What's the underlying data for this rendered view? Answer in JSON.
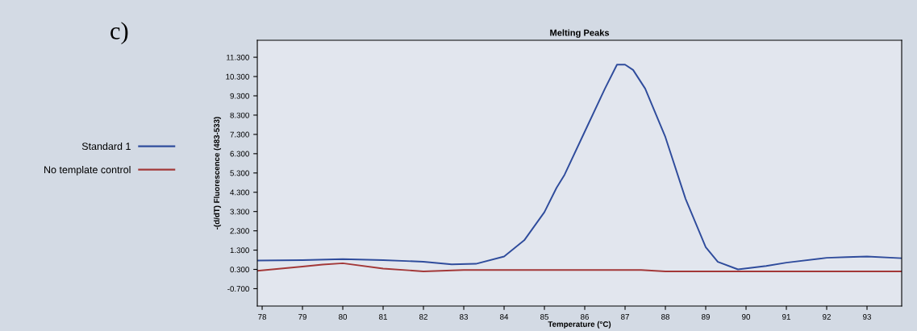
{
  "chart_data": {
    "type": "line",
    "title": "Melting Peaks",
    "xlabel": "Temperature (°C)",
    "ylabel": "-(d/dT) Fluorescence (483-533)",
    "annotations": [
      "c)"
    ],
    "xlim": [
      77.88,
      93.86
    ],
    "ylim": [
      -1.6,
      12.18
    ],
    "xticks": [
      78,
      79,
      80,
      81,
      82,
      83,
      84,
      85,
      86,
      87,
      88,
      89,
      90,
      91,
      92,
      93
    ],
    "yticks": [
      {
        "value": -0.7,
        "label": "-0.700"
      },
      {
        "value": 0.3,
        "label": "0.300"
      },
      {
        "value": 1.3,
        "label": "1.300"
      },
      {
        "value": 2.3,
        "label": "2.300"
      },
      {
        "value": 3.3,
        "label": "3.300"
      },
      {
        "value": 4.3,
        "label": "4.300"
      },
      {
        "value": 5.3,
        "label": "5.300"
      },
      {
        "value": 6.3,
        "label": "6.300"
      },
      {
        "value": 7.3,
        "label": "7.300"
      },
      {
        "value": 8.3,
        "label": "8.300"
      },
      {
        "value": 9.3,
        "label": "9.300"
      },
      {
        "value": 10.3,
        "label": "10.300"
      },
      {
        "value": 11.3,
        "label": "11.300"
      }
    ],
    "grid": false,
    "legend": "left",
    "marker": "none",
    "line_style": "solid",
    "series": [
      {
        "name": "Standard 1",
        "color": "#2f4c9c",
        "x": [
          77.88,
          79,
          80,
          81,
          82,
          82.7,
          83.3,
          84,
          84.5,
          85,
          85.3,
          85.5,
          86,
          86.5,
          86.8,
          87,
          87.2,
          87.5,
          88,
          88.5,
          89,
          89.3,
          89.8,
          90.5,
          91,
          92,
          92.5,
          93,
          93.86
        ],
        "values": [
          0.76,
          0.78,
          0.83,
          0.78,
          0.7,
          0.56,
          0.59,
          0.97,
          1.81,
          3.27,
          4.53,
          5.21,
          7.44,
          9.67,
          10.92,
          10.92,
          10.64,
          9.67,
          7.16,
          3.96,
          1.45,
          0.69,
          0.3,
          0.48,
          0.65,
          0.9,
          0.94,
          0.97,
          0.88
        ]
      },
      {
        "name": "No template control",
        "color": "#a33838",
        "x": [
          77.88,
          79,
          79.5,
          80,
          81,
          82,
          83,
          87.4,
          88,
          93.86
        ],
        "values": [
          0.23,
          0.45,
          0.55,
          0.62,
          0.34,
          0.2,
          0.27,
          0.27,
          0.2,
          0.2
        ]
      }
    ]
  }
}
